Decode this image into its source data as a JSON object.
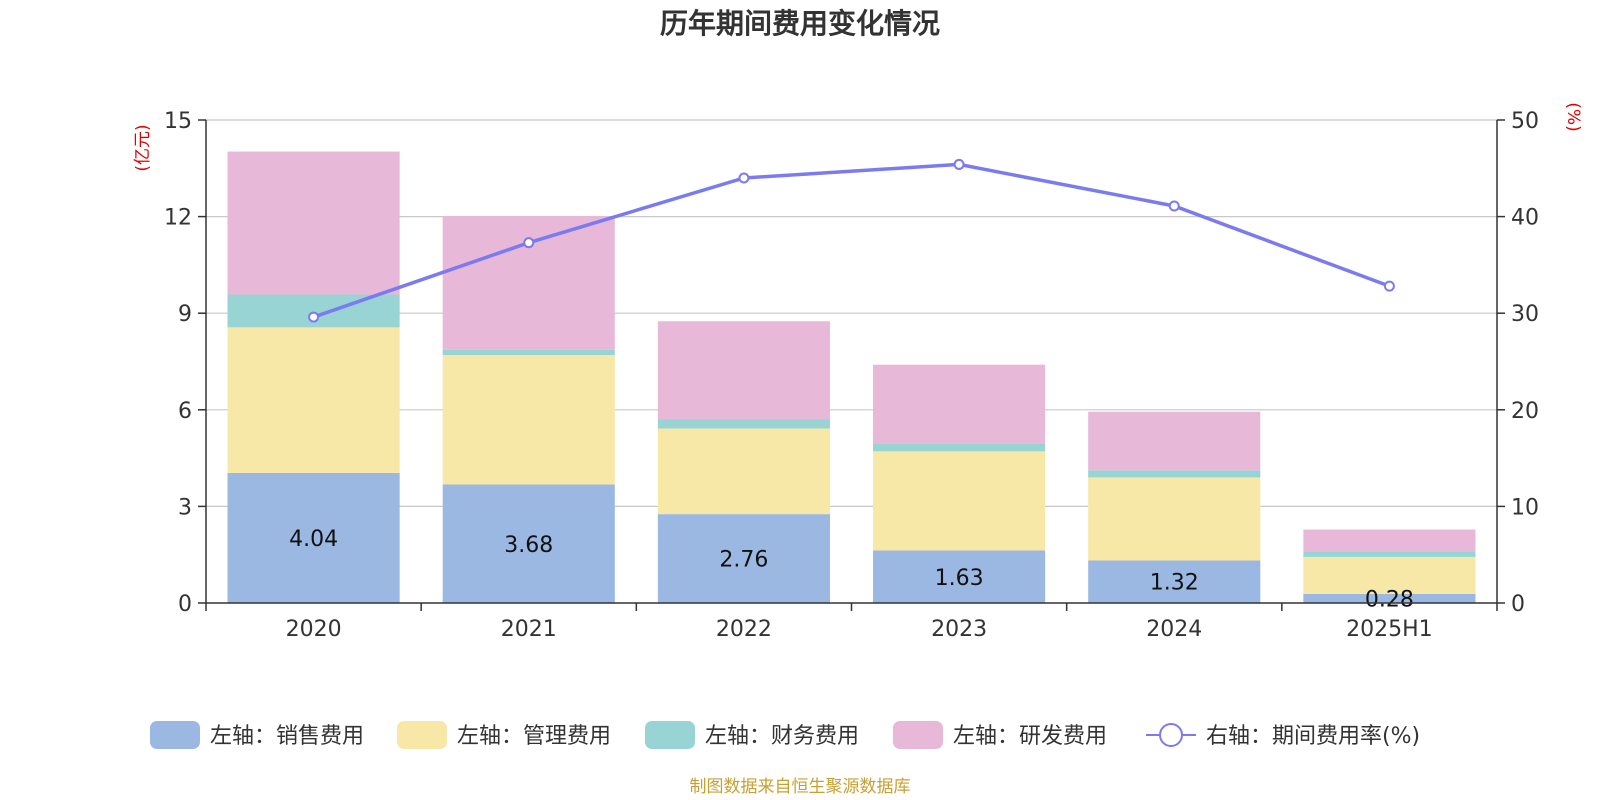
{
  "chart_data": {
    "type": "bar",
    "title": "历年期间费用变化情况",
    "categories": [
      "2020",
      "2021",
      "2022",
      "2023",
      "2024",
      "2025H1"
    ],
    "y_left": {
      "unit": "(亿元)",
      "ylim": [
        0,
        15
      ],
      "ticks": [
        0,
        3,
        6,
        9,
        12,
        15
      ]
    },
    "y_right": {
      "unit": "(%)",
      "ylim": [
        0,
        50
      ],
      "ticks": [
        0,
        10,
        20,
        30,
        40,
        50
      ]
    },
    "series": [
      {
        "name": "左轴：销售费用",
        "type": "bar",
        "axis": "left",
        "color": "#9bb8e2",
        "values": [
          4.04,
          3.68,
          2.76,
          1.63,
          1.32,
          0.28
        ],
        "show_labels": true
      },
      {
        "name": "左轴：管理费用",
        "type": "bar",
        "axis": "left",
        "color": "#f8e8a8",
        "values": [
          4.52,
          4.02,
          2.66,
          3.08,
          2.58,
          1.15
        ]
      },
      {
        "name": "左轴：财务费用",
        "type": "bar",
        "axis": "left",
        "color": "#98d4d4",
        "values": [
          1.02,
          0.16,
          0.28,
          0.24,
          0.22,
          0.18
        ]
      },
      {
        "name": "左轴：研发费用",
        "type": "bar",
        "axis": "left",
        "color": "#e8b8d8",
        "values": [
          4.44,
          4.16,
          3.05,
          2.45,
          1.82,
          0.67
        ]
      },
      {
        "name": "右轴：期间费用率(%)",
        "type": "line",
        "axis": "right",
        "color": "#7b7bef",
        "values": [
          29.6,
          37.3,
          44.0,
          45.4,
          41.1,
          32.8
        ]
      }
    ],
    "grid": true,
    "legend": "bottom"
  },
  "footer": {
    "source": "制图数据来自恒生聚源数据库"
  }
}
